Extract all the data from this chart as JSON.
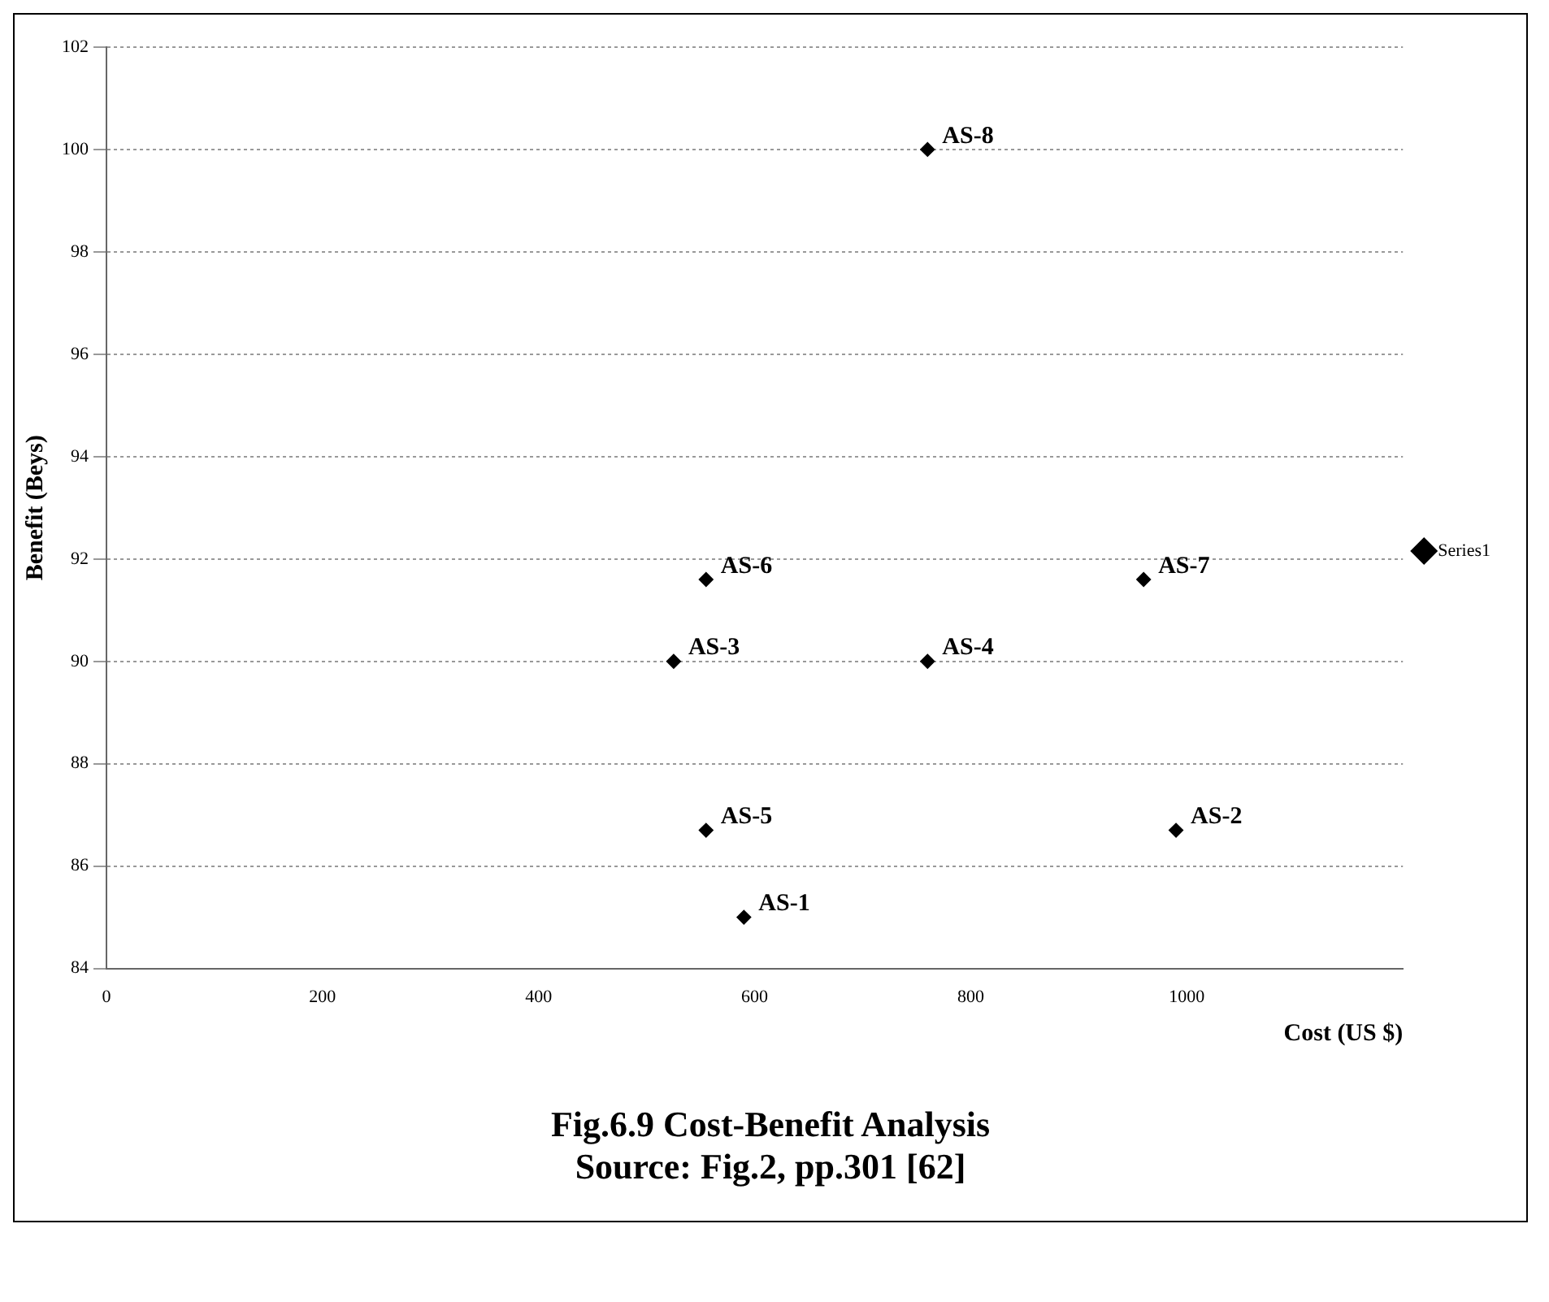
{
  "chart_data": {
    "type": "scatter",
    "title": "Fig.6.9 Cost-Benefit Analysis",
    "subtitle": "Source: Fig.2, pp.301 [62]",
    "xlabel": "Cost (US $)",
    "ylabel": "Benefit (Beys)",
    "x": [
      590,
      990,
      525,
      760,
      555,
      555,
      960,
      760
    ],
    "series": [
      {
        "name": "Series1",
        "color": "#000000",
        "values": [
          85,
          86.7,
          90,
          90,
          86.7,
          91.6,
          91.6,
          100
        ]
      }
    ],
    "xlim": [
      0,
      1200
    ],
    "xticks": [
      0,
      200,
      400,
      600,
      800,
      1000
    ],
    "ylim": [
      84,
      102
    ],
    "yticks": [
      84,
      86,
      88,
      90,
      92,
      94,
      96,
      98,
      100,
      102
    ],
    "grid": "y",
    "legend": "right",
    "marker": "diamond",
    "annotations": [
      {
        "text": "AS-1",
        "x": 590,
        "y": 85
      },
      {
        "text": "AS-2",
        "x": 990,
        "y": 86.7
      },
      {
        "text": "AS-3",
        "x": 525,
        "y": 90
      },
      {
        "text": "AS-4",
        "x": 760,
        "y": 90
      },
      {
        "text": "AS-5",
        "x": 555,
        "y": 86.7
      },
      {
        "text": "AS-6",
        "x": 555,
        "y": 91.6
      },
      {
        "text": "AS-7",
        "x": 960,
        "y": 91.6
      },
      {
        "text": "AS-8",
        "x": 760,
        "y": 100
      }
    ]
  }
}
